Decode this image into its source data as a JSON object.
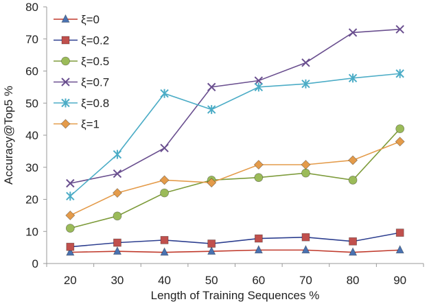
{
  "chart_data": {
    "type": "line",
    "title": "",
    "xlabel": "Length of Training Sequences %",
    "ylabel": "Accuracy@Top5 %",
    "categories": [
      "20",
      "30",
      "40",
      "50",
      "60",
      "70",
      "80",
      "90"
    ],
    "ylim": [
      0,
      80
    ],
    "yticks": [
      0,
      10,
      20,
      30,
      40,
      50,
      60,
      70,
      80
    ],
    "grid": false,
    "legend_position": "top-left",
    "series": [
      {
        "name": "ξ=0",
        "color": "#c0392b",
        "marker": "triangle",
        "marker_color": "#4a72b0",
        "values": [
          3.5,
          3.8,
          3.5,
          3.8,
          4.2,
          4.2,
          3.5,
          4.2
        ]
      },
      {
        "name": "ξ=0.2",
        "color": "#2c3e8f",
        "marker": "square",
        "marker_color": "#c0504d",
        "values": [
          5.2,
          6.5,
          7.3,
          6.2,
          7.8,
          8.2,
          6.9,
          9.6
        ]
      },
      {
        "name": "ξ=0.5",
        "color": "#7d9b3a",
        "marker": "circle",
        "marker_color": "#9bbb59",
        "values": [
          11,
          14.8,
          22,
          26,
          26.8,
          28.2,
          26,
          42
        ]
      },
      {
        "name": "ξ=0.7",
        "color": "#6a4f8f",
        "marker": "x",
        "marker_color": "#6a4f8f",
        "values": [
          25,
          28,
          36,
          55,
          57,
          62.6,
          72,
          73
        ]
      },
      {
        "name": "ξ=0.8",
        "color": "#4bacc6",
        "marker": "star",
        "marker_color": "#4bacc6",
        "values": [
          21,
          34,
          53,
          48,
          55,
          56,
          57.8,
          59.2
        ]
      },
      {
        "name": "ξ=1",
        "color": "#e49b4a",
        "marker": "diamond",
        "marker_color": "#e49b4a",
        "values": [
          15,
          22,
          26,
          25.2,
          30.8,
          30.8,
          32.2,
          38
        ]
      }
    ]
  }
}
